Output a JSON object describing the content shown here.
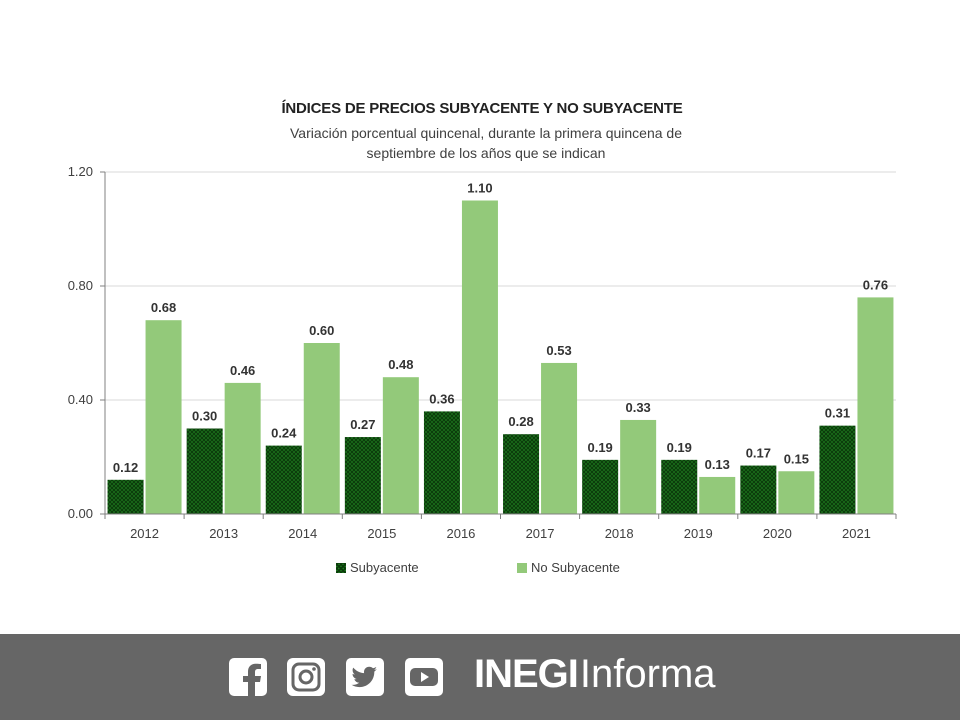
{
  "chart_data": {
    "type": "bar",
    "title": "ÍNDICES DE PRECIOS SUBYACENTE Y NO SUBYACENTE",
    "subtitle": "Variación porcentual quincenal, durante la primera quincena de septiembre de los años que se indican",
    "categories": [
      "2012",
      "2013",
      "2014",
      "2015",
      "2016",
      "2017",
      "2018",
      "2019",
      "2020",
      "2021"
    ],
    "series": [
      {
        "name": "Subyacente",
        "values": [
          0.12,
          0.3,
          0.24,
          0.27,
          0.36,
          0.28,
          0.19,
          0.19,
          0.17,
          0.31
        ],
        "color": "#1e7a1e"
      },
      {
        "name": "No Subyacente",
        "values": [
          0.68,
          0.46,
          0.6,
          0.48,
          1.1,
          0.53,
          0.33,
          0.13,
          0.15,
          0.76
        ],
        "color": "#93c97a"
      }
    ],
    "yticks": [
      "0.00",
      "0.40",
      "0.80",
      "1.20"
    ],
    "ylim": [
      0,
      1.2
    ],
    "grid": true,
    "legend_position": "bottom"
  },
  "footer": {
    "social_icons": [
      "facebook-icon",
      "instagram-icon",
      "twitter-icon",
      "youtube-icon"
    ],
    "brand_bold": "INEGI",
    "brand_regular": "Informa",
    "background": "#666666"
  }
}
